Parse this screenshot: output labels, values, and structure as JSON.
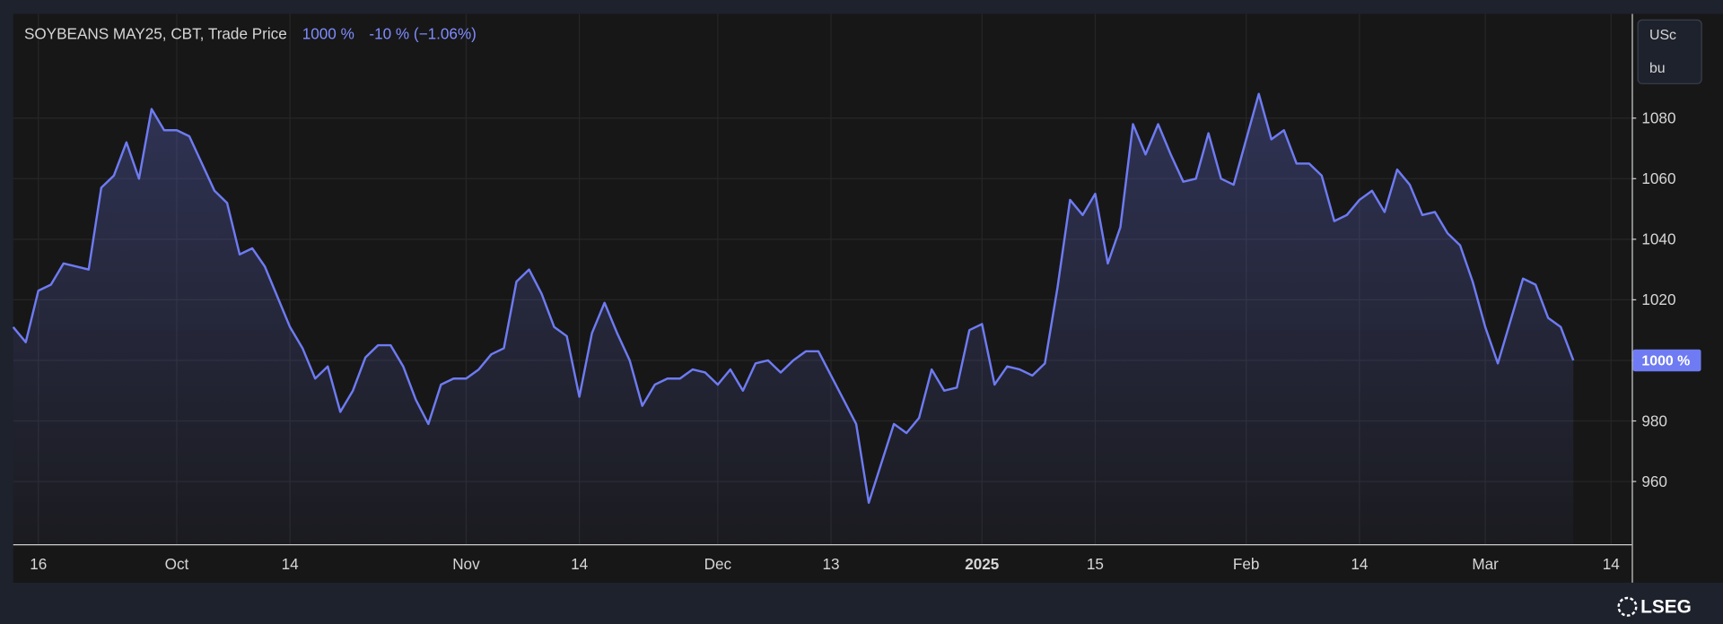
{
  "chart_data": {
    "type": "line",
    "title": "SOYBEANS MAY25, CBT, Trade Price",
    "last_value_text": "1000 %",
    "change_text": "-10 % (−1.06%)",
    "unit_lines": [
      "USc",
      "bu"
    ],
    "price_label": "1000 %",
    "brand": "LSEG",
    "categories": [
      null,
      null,
      "16",
      null,
      null,
      null,
      null,
      null,
      null,
      null,
      null,
      null,
      null,
      "Oct",
      null,
      null,
      null,
      null,
      null,
      null,
      null,
      null,
      "14",
      null,
      null,
      null,
      null,
      null,
      null,
      null,
      null,
      null,
      null,
      null,
      null,
      null,
      "Nov",
      null,
      null,
      null,
      null,
      null,
      null,
      null,
      null,
      "14",
      null,
      null,
      null,
      null,
      null,
      null,
      null,
      null,
      null,
      null,
      "Dec",
      null,
      null,
      null,
      null,
      null,
      null,
      null,
      null,
      "13",
      null,
      null,
      null,
      null,
      null,
      null,
      null,
      null,
      null,
      null,
      null,
      "2025",
      null,
      null,
      null,
      null,
      null,
      null,
      null,
      null,
      "15",
      null,
      null,
      null,
      null,
      null,
      null,
      null,
      null,
      null,
      null,
      null,
      "Feb",
      null,
      null,
      null,
      null,
      null,
      null,
      null,
      null,
      "14",
      null,
      null,
      null,
      null,
      null,
      null,
      null,
      null,
      null,
      "Mar",
      null,
      null,
      null,
      null,
      null,
      null,
      null,
      null,
      null,
      "14",
      null
    ],
    "series": [
      {
        "name": "SOYBEANS MAY25",
        "color": "#6e7bf2",
        "values": [
          1011,
          1006,
          1023,
          1025,
          1032,
          1031,
          1030,
          1057,
          1061,
          1072,
          1060,
          1083,
          1076,
          1076,
          1074,
          1065,
          1056,
          1052,
          1035,
          1037,
          1031,
          1021,
          1011,
          1004,
          994,
          998,
          983,
          990,
          1001,
          1005,
          1005,
          998,
          987,
          979,
          992,
          994,
          994,
          997,
          1002,
          1004,
          1026,
          1030,
          1022,
          1011,
          1008,
          988,
          1009,
          1019,
          1009,
          1000,
          985,
          992,
          994,
          994,
          997,
          996,
          992,
          997,
          990,
          999,
          1000,
          996,
          1000,
          1003,
          1003,
          995,
          987,
          979,
          953,
          966,
          979,
          976,
          981,
          997,
          990,
          991,
          1010,
          1012,
          992,
          998,
          997,
          995,
          999,
          1024,
          1053,
          1048,
          1055,
          1032,
          1044,
          1078,
          1068,
          1078,
          1068,
          1059,
          1060,
          1075,
          1060,
          1058,
          1073,
          1088,
          1073,
          1076,
          1065,
          1065,
          1061,
          1046,
          1048,
          1053,
          1056,
          1049,
          1063,
          1058,
          1048,
          1049,
          1042,
          1038,
          1026,
          1011,
          999,
          1013,
          1027,
          1025,
          1014,
          1011,
          1000,
          null,
          null,
          null,
          null
        ]
      }
    ],
    "ylim": [
      939.3,
      1114.4
    ],
    "yticks": [
      960,
      980,
      1000,
      1020,
      1040,
      1060,
      1080
    ],
    "grid": true
  }
}
